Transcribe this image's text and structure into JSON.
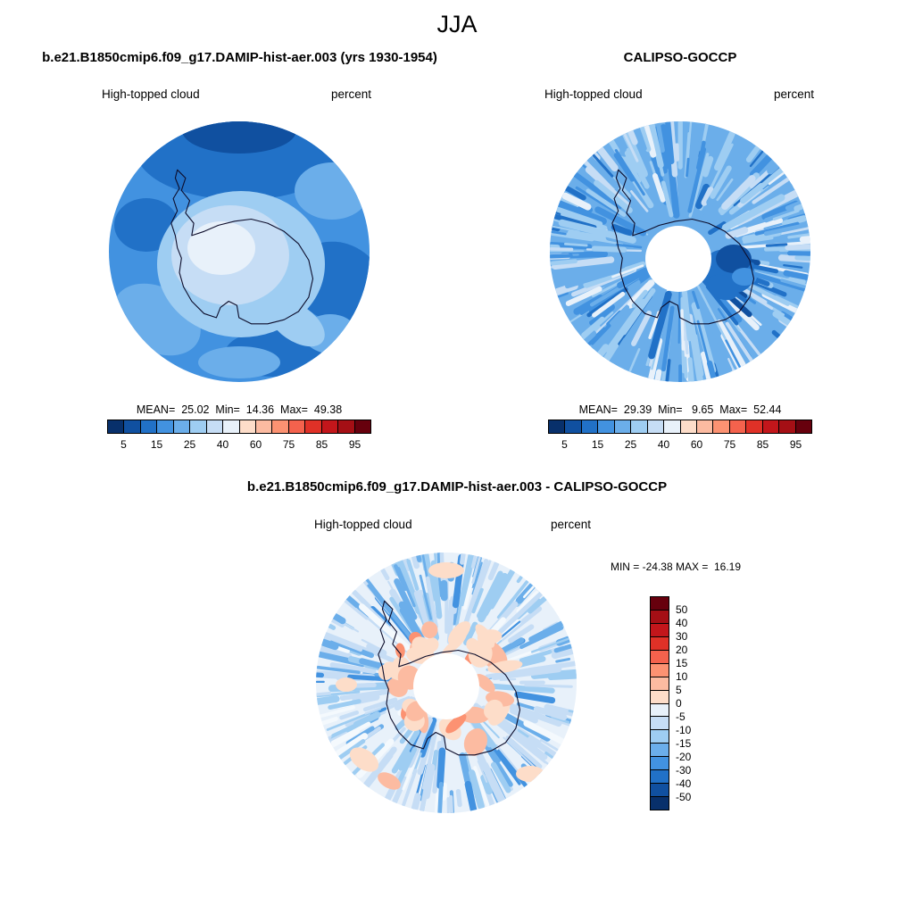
{
  "page_title": "JJA",
  "panels": {
    "model": {
      "header": "b.e21.B1850cmip6.f09_g17.DAMIP-hist-aer.003 (yrs 1930-1954)",
      "field_label": "High-topped cloud",
      "units_label": "percent",
      "stats_text": "MEAN=  25.02  Min=  14.36  Max=  49.38"
    },
    "obs": {
      "header": "CALIPSO-GOCCP",
      "field_label": "High-topped cloud",
      "units_label": "percent",
      "stats_text": "MEAN=  29.39  Min=   9.65  Max=  52.44"
    },
    "diff": {
      "header": "b.e21.B1850cmip6.f09_g17.DAMIP-hist-aer.003 - CALIPSO-GOCCP",
      "field_label": "High-topped cloud",
      "units_label": "percent",
      "stats_text": "MIN = -24.38 MAX =  16.19"
    }
  },
  "chart_data": [
    {
      "type": "heatmap",
      "subtype": "filled-contour south-polar stereographic map",
      "season": "JJA",
      "title": "b.e21.B1850cmip6.f09_g17.DAMIP-hist-aer.003 (yrs 1930-1954)",
      "variable": "High-topped cloud",
      "units": "percent",
      "stats": {
        "mean": 25.02,
        "min": 14.36,
        "max": 49.38
      },
      "levels": [
        5,
        10,
        15,
        20,
        25,
        30,
        40,
        50,
        60,
        70,
        75,
        80,
        85,
        90,
        95
      ],
      "labeled_ticks": [
        5,
        15,
        25,
        40,
        60,
        75,
        85,
        95
      ],
      "palette": [
        "#08306b",
        "#1050a0",
        "#2171c7",
        "#4292e0",
        "#6baeea",
        "#9ecdf2",
        "#c6ddf5",
        "#e8f1fa",
        "#fdddc9",
        "#fcbba1",
        "#fc9272",
        "#f4624d",
        "#e03127",
        "#c3161b",
        "#a50f15",
        "#67000d"
      ],
      "legend_position": "bottom-horizontal"
    },
    {
      "type": "heatmap",
      "subtype": "filled-contour south-polar stereographic map",
      "season": "JJA",
      "title": "CALIPSO-GOCCP",
      "variable": "High-topped cloud",
      "units": "percent",
      "stats": {
        "mean": 29.39,
        "min": 9.65,
        "max": 52.44
      },
      "levels": [
        5,
        10,
        15,
        20,
        25,
        30,
        40,
        50,
        60,
        70,
        75,
        80,
        85,
        90,
        95
      ],
      "labeled_ticks": [
        5,
        15,
        25,
        40,
        60,
        75,
        85,
        95
      ],
      "palette": [
        "#08306b",
        "#1050a0",
        "#2171c7",
        "#4292e0",
        "#6baeea",
        "#9ecdf2",
        "#c6ddf5",
        "#e8f1fa",
        "#fdddc9",
        "#fcbba1",
        "#fc9272",
        "#f4624d",
        "#e03127",
        "#c3161b",
        "#a50f15",
        "#67000d"
      ],
      "legend_position": "bottom-horizontal"
    },
    {
      "type": "heatmap",
      "subtype": "filled-contour south-polar stereographic difference map",
      "season": "JJA",
      "title": "b.e21.B1850cmip6.f09_g17.DAMIP-hist-aer.003 - CALIPSO-GOCCP",
      "variable": "High-topped cloud difference",
      "units": "percent",
      "stats": {
        "min": -24.38,
        "max": 16.19
      },
      "levels": [
        -50,
        -40,
        -30,
        -20,
        -15,
        -10,
        -5,
        0,
        5,
        10,
        15,
        20,
        30,
        40,
        50
      ],
      "labels_top_to_bottom": [
        "50",
        "40",
        "30",
        "20",
        "15",
        "10",
        "5",
        "0",
        "-5",
        "-10",
        "-15",
        "-20",
        "-30",
        "-40",
        "-50"
      ],
      "palette_top_to_bottom": [
        "#67000d",
        "#a50f15",
        "#c3161b",
        "#e03127",
        "#f4624d",
        "#fc9272",
        "#fcbba1",
        "#fdddc9",
        "#e8f1fa",
        "#c6ddf5",
        "#9ecdf2",
        "#6baeea",
        "#4292e0",
        "#2171c7",
        "#1050a0",
        "#08306b"
      ],
      "legend_position": "right-vertical"
    }
  ]
}
